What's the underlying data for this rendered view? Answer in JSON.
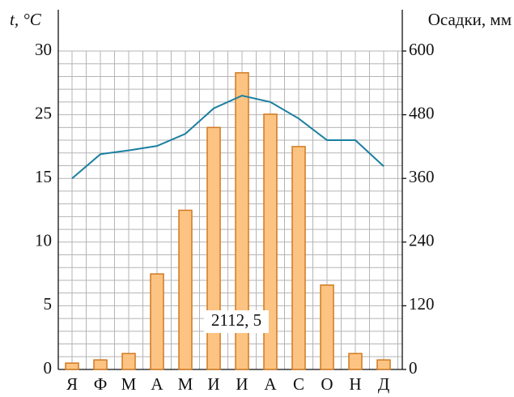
{
  "chart_data": {
    "type": "bar_line",
    "ylabel": "t, °C",
    "y2label": "Осадки, мм",
    "categories": [
      "Я",
      "Ф",
      "М",
      "А",
      "М",
      "И",
      "И",
      "А",
      "С",
      "О",
      "Н",
      "Д"
    ],
    "series": [
      {
        "name": "Осадки",
        "type": "bar",
        "axis": "y2",
        "color": "#fdc382",
        "edge_color": "#d07a20",
        "values": [
          12,
          18,
          30,
          180,
          300,
          456,
          559,
          481,
          420,
          159,
          30,
          18
        ]
      },
      {
        "name": "t",
        "type": "line",
        "axis": "y",
        "color": "#1a7fa0",
        "values": [
          15,
          18.8,
          19.4,
          20.1,
          22,
          25.5,
          26.5,
          26,
          24.4,
          21,
          21,
          16.9
        ]
      }
    ],
    "ylim": [
      0,
      30
    ],
    "yticks": [
      0,
      5,
      10,
      15,
      25,
      30
    ],
    "y2lim": [
      0,
      600
    ],
    "y2ticks": [
      0,
      120,
      240,
      360,
      480,
      600
    ],
    "annotation": "2112, 5",
    "grid": true
  }
}
